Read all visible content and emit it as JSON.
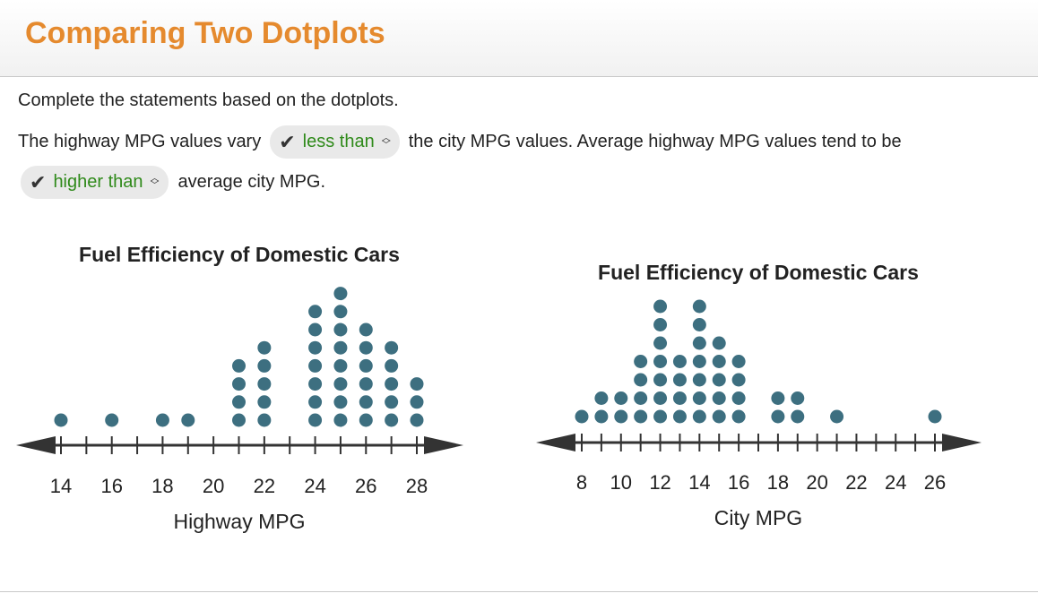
{
  "page": {
    "title": "Comparing Two Dotplots",
    "instructions": "Complete the statements based on the dotplots.",
    "sentence": {
      "part1": "The highway MPG values vary",
      "dropdown1": "less than",
      "part2": "the city MPG values. Average highway MPG values tend to be",
      "dropdown2": "higher than",
      "part3": "average city MPG."
    }
  },
  "icons": {
    "check": "check-icon",
    "dropdown": "chevron-up-down-icon"
  },
  "colors": {
    "dot": "#3d6f80",
    "title": "#e58a2e",
    "selected_answer": "#2f8a1a"
  },
  "chart_data": [
    {
      "type": "scatter",
      "subtype": "dotplot",
      "title": "Fuel Efficiency of Domestic Cars",
      "xlabel": "Highway MPG",
      "xlim": [
        14,
        28
      ],
      "tick_labels": [
        "14",
        "16",
        "18",
        "20",
        "22",
        "24",
        "26",
        "28"
      ],
      "x": [
        14,
        16,
        18,
        19,
        21,
        22,
        24,
        25,
        26,
        27,
        28
      ],
      "counts": [
        1,
        1,
        1,
        1,
        4,
        5,
        7,
        8,
        6,
        5,
        3
      ]
    },
    {
      "type": "scatter",
      "subtype": "dotplot",
      "title": "Fuel Efficiency of Domestic Cars",
      "xlabel": "City MPG",
      "xlim": [
        8,
        26
      ],
      "tick_labels": [
        "8",
        "10",
        "12",
        "14",
        "16",
        "18",
        "20",
        "22",
        "24",
        "26"
      ],
      "x": [
        8,
        9,
        10,
        11,
        12,
        13,
        14,
        15,
        16,
        18,
        19,
        21,
        26
      ],
      "counts": [
        1,
        2,
        2,
        4,
        7,
        4,
        7,
        5,
        4,
        2,
        2,
        1,
        1
      ]
    }
  ]
}
